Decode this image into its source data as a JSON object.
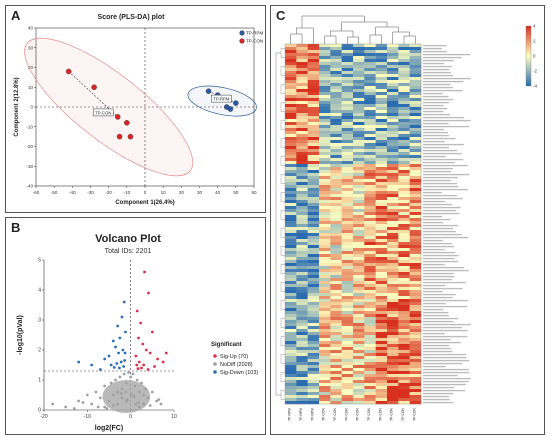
{
  "panels": {
    "A": {
      "label": "A",
      "title": "Score (PLS-DA) plot",
      "xlabel": "Component 1(26.4%)",
      "ylabel": "Component 2(12.8%)",
      "legend": [
        {
          "name": "TP-RPM",
          "color": "#2c5aa0"
        },
        {
          "name": "TP-CON",
          "color": "#d62728"
        }
      ],
      "group_tags": [
        "TP-RPM",
        "TP-CON"
      ]
    },
    "B": {
      "label": "B",
      "title": "Volcano Plot",
      "subtitle": "Total IDs: 2201",
      "xlabel": "log2(FC)",
      "ylabel": "-log10(pVal)",
      "legend_title": "Significant",
      "legend": [
        {
          "name": "Sig-Up (70)",
          "color": "#e0304a"
        },
        {
          "name": "NoDiff (2028)",
          "color": "#a0a0a0"
        },
        {
          "name": "Sig-Down (103)",
          "color": "#2a6fb5"
        }
      ]
    },
    "C": {
      "label": "C",
      "scale_ticks": [
        "4",
        "2",
        "0",
        "-2",
        "-4"
      ]
    }
  },
  "chart_data": [
    {
      "type": "scatter",
      "panel": "A",
      "title": "Score (PLS-DA) plot",
      "xlabel": "Component 1(26.4%)",
      "ylabel": "Component 2(12.8%)",
      "xlim": [
        -60,
        60
      ],
      "ylim": [
        -40,
        40
      ],
      "xticks": [
        "-60",
        "-50",
        "-40",
        "-30",
        "-20",
        "-10",
        "0",
        "10",
        "20",
        "30",
        "40",
        "50",
        "60"
      ],
      "yticks": [
        "40",
        "30",
        "20",
        "10",
        "0",
        "-10",
        "-20",
        "-30",
        "-40"
      ],
      "series": [
        {
          "name": "TP-RPM",
          "color": "#2c5aa0",
          "x": [
            35,
            40,
            50,
            45,
            47
          ],
          "y": [
            8,
            6,
            2,
            0,
            -1
          ]
        },
        {
          "name": "TP-CON",
          "color": "#d62728",
          "x": [
            -42,
            -28,
            -15,
            -10,
            -8,
            -14
          ],
          "y": [
            18,
            10,
            -5,
            -8,
            -15,
            -15
          ]
        }
      ]
    },
    {
      "type": "scatter",
      "panel": "B",
      "title": "Volcano Plot",
      "xlabel": "log2(FC)",
      "ylabel": "-log10(pVal)",
      "xlim": [
        -20,
        10
      ],
      "ylim": [
        0,
        5
      ],
      "xticks": [
        "-20",
        "-10",
        "0",
        "10"
      ],
      "yticks": [
        "0",
        "1",
        "2",
        "3",
        "4",
        "5"
      ],
      "threshold_y": 1.3,
      "series": [
        {
          "name": "Sig-Up (70)",
          "color": "#e0304a",
          "x": [
            3.2,
            4.1,
            1.5,
            2.3,
            5.0,
            1.8,
            2.8,
            3.6,
            4.5,
            1.2,
            6.2,
            7.5,
            2.0,
            1.4,
            3.0,
            5.5,
            2.5,
            1.7,
            4.0,
            8.2
          ],
          "y": [
            4.6,
            3.9,
            3.3,
            2.9,
            2.6,
            2.4,
            2.2,
            2.0,
            1.9,
            1.8,
            1.7,
            1.6,
            1.6,
            1.5,
            1.5,
            1.45,
            1.4,
            1.38,
            1.35,
            1.9
          ]
        },
        {
          "name": "NoDiff (2028)",
          "color": "#a0a0a0",
          "x": [
            -18,
            -15,
            -12,
            -10,
            -9,
            -8,
            -7,
            -6,
            -5,
            -4.5,
            -4,
            -3.5,
            -3,
            -2.5,
            -2,
            -1.5,
            -1,
            -0.5,
            0,
            0.5,
            1,
            1.5,
            2,
            2.5,
            3,
            3.5,
            4,
            5,
            6,
            7,
            -3,
            -2,
            -1,
            0.2,
            1.2,
            -6,
            -4,
            2,
            3,
            -1.2,
            -0.8,
            0.8,
            -2.2,
            1.8,
            -5.5,
            4.5,
            -7.5,
            -11,
            -13,
            6.5
          ],
          "y": [
            0.2,
            0.1,
            0.3,
            0.5,
            0.2,
            0.6,
            0.4,
            0.8,
            0.3,
            0.9,
            0.5,
            1.0,
            0.6,
            1.1,
            0.7,
            1.2,
            0.9,
            1.25,
            1.1,
            1.2,
            0.8,
            1.0,
            0.6,
            0.9,
            0.5,
            0.7,
            0.4,
            0.6,
            0.3,
            0.2,
            0.2,
            0.4,
            0.3,
            0.5,
            0.2,
            0.1,
            0.15,
            0.1,
            0.2,
            0.6,
            0.35,
            0.45,
            0.55,
            0.25,
            0.05,
            0.15,
            0.1,
            0.25,
            0.05,
            0.35
          ]
        },
        {
          "name": "Sig-Down (103)",
          "color": "#2a6fb5",
          "x": [
            -1.5,
            -2.0,
            -3.0,
            -1.2,
            -2.5,
            -4.0,
            -3.5,
            -1.8,
            -2.8,
            -5.0,
            -6.0,
            -1.4,
            -2.2,
            -3.2,
            -4.5,
            -1.6,
            -2.6,
            -9.0,
            -12.0,
            -7.0,
            -1.3,
            -3.8
          ],
          "y": [
            3.6,
            3.1,
            2.8,
            2.6,
            2.4,
            2.3,
            2.1,
            2.0,
            1.9,
            1.8,
            1.7,
            1.65,
            1.6,
            1.55,
            1.5,
            1.45,
            1.4,
            1.5,
            1.6,
            1.35,
            1.9,
            1.42
          ]
        }
      ]
    },
    {
      "type": "heatmap",
      "panel": "C",
      "rows": 120,
      "columns": 12,
      "column_groups": [
        "TP-RPM",
        "TP-RPM",
        "TP-RPM",
        "TP-CON",
        "TP-CON",
        "TP-CON",
        "TP-CON",
        "TP-CON",
        "TP-CON",
        "TP-CON",
        "TP-CON",
        "TP-CON"
      ],
      "color_range": [
        -4,
        4
      ],
      "colors": {
        "high": "#d7301f",
        "mid": "#ffffbf",
        "low": "#2b6cb0"
      }
    }
  ]
}
